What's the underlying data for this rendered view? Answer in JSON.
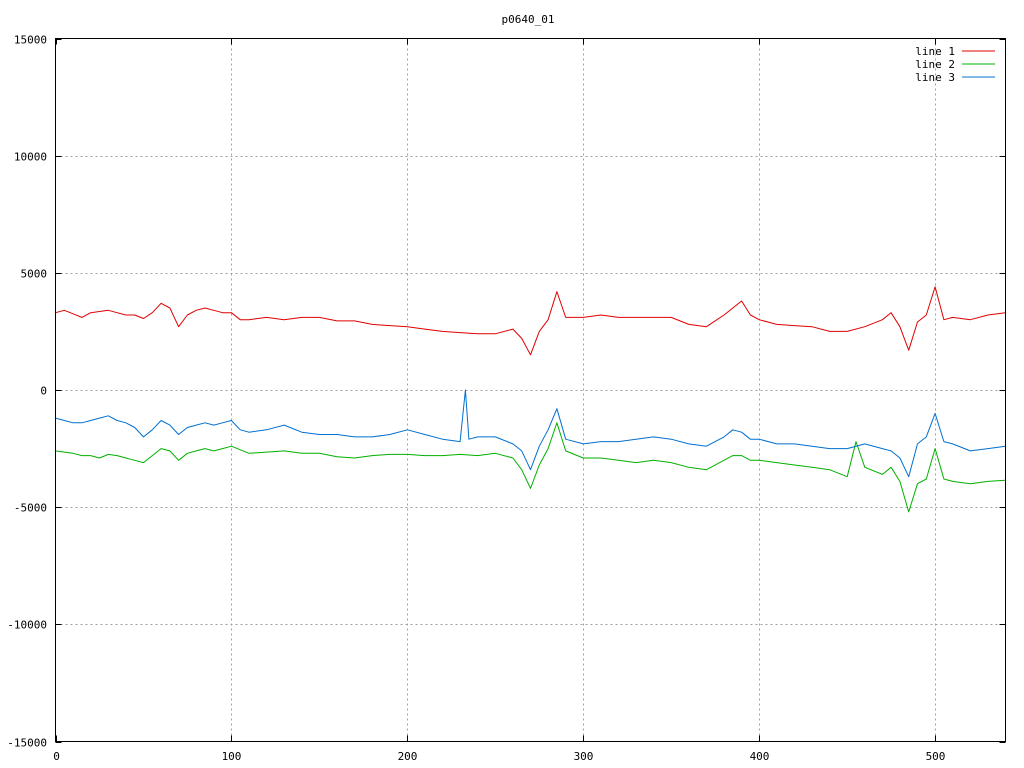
{
  "chart_data": {
    "type": "line",
    "title": "p0640_01",
    "xlabel": "",
    "ylabel": "",
    "xlim": [
      0,
      540
    ],
    "ylim": [
      -15000,
      15000
    ],
    "x_ticks": [
      0,
      100,
      200,
      300,
      400,
      500
    ],
    "y_ticks": [
      -15000,
      -10000,
      -5000,
      0,
      5000,
      10000,
      15000
    ],
    "grid": true,
    "legend_position": "top-right",
    "series": [
      {
        "name": "line 1",
        "color": "#e00000",
        "points": [
          [
            0,
            3300
          ],
          [
            5,
            3400
          ],
          [
            10,
            3250
          ],
          [
            15,
            3100
          ],
          [
            20,
            3300
          ],
          [
            25,
            3350
          ],
          [
            30,
            3400
          ],
          [
            35,
            3300
          ],
          [
            40,
            3200
          ],
          [
            45,
            3200
          ],
          [
            50,
            3050
          ],
          [
            55,
            3300
          ],
          [
            60,
            3700
          ],
          [
            65,
            3500
          ],
          [
            70,
            2700
          ],
          [
            75,
            3200
          ],
          [
            80,
            3400
          ],
          [
            85,
            3500
          ],
          [
            90,
            3400
          ],
          [
            95,
            3300
          ],
          [
            100,
            3300
          ],
          [
            105,
            3000
          ],
          [
            110,
            3000
          ],
          [
            120,
            3100
          ],
          [
            130,
            3000
          ],
          [
            140,
            3100
          ],
          [
            150,
            3100
          ],
          [
            160,
            2950
          ],
          [
            170,
            2950
          ],
          [
            180,
            2800
          ],
          [
            190,
            2750
          ],
          [
            200,
            2700
          ],
          [
            210,
            2600
          ],
          [
            220,
            2500
          ],
          [
            230,
            2450
          ],
          [
            240,
            2400
          ],
          [
            250,
            2400
          ],
          [
            260,
            2600
          ],
          [
            265,
            2200
          ],
          [
            270,
            1500
          ],
          [
            275,
            2500
          ],
          [
            280,
            3000
          ],
          [
            285,
            4200
          ],
          [
            290,
            3100
          ],
          [
            300,
            3100
          ],
          [
            310,
            3200
          ],
          [
            320,
            3100
          ],
          [
            330,
            3100
          ],
          [
            340,
            3100
          ],
          [
            350,
            3100
          ],
          [
            360,
            2800
          ],
          [
            370,
            2700
          ],
          [
            380,
            3200
          ],
          [
            385,
            3500
          ],
          [
            390,
            3800
          ],
          [
            395,
            3200
          ],
          [
            400,
            3000
          ],
          [
            410,
            2800
          ],
          [
            420,
            2750
          ],
          [
            430,
            2700
          ],
          [
            440,
            2500
          ],
          [
            450,
            2500
          ],
          [
            460,
            2700
          ],
          [
            470,
            3000
          ],
          [
            475,
            3300
          ],
          [
            480,
            2700
          ],
          [
            485,
            1700
          ],
          [
            490,
            2900
          ],
          [
            495,
            3200
          ],
          [
            500,
            4400
          ],
          [
            505,
            3000
          ],
          [
            510,
            3100
          ],
          [
            520,
            3000
          ],
          [
            530,
            3200
          ],
          [
            540,
            3300
          ]
        ]
      },
      {
        "name": "line 2",
        "color": "#00b000",
        "points": [
          [
            0,
            -2600
          ],
          [
            5,
            -2650
          ],
          [
            10,
            -2700
          ],
          [
            15,
            -2800
          ],
          [
            20,
            -2800
          ],
          [
            25,
            -2900
          ],
          [
            30,
            -2750
          ],
          [
            35,
            -2800
          ],
          [
            40,
            -2900
          ],
          [
            45,
            -3000
          ],
          [
            50,
            -3100
          ],
          [
            55,
            -2800
          ],
          [
            60,
            -2500
          ],
          [
            65,
            -2600
          ],
          [
            70,
            -3000
          ],
          [
            75,
            -2700
          ],
          [
            80,
            -2600
          ],
          [
            85,
            -2500
          ],
          [
            90,
            -2600
          ],
          [
            95,
            -2500
          ],
          [
            100,
            -2400
          ],
          [
            110,
            -2700
          ],
          [
            120,
            -2650
          ],
          [
            130,
            -2600
          ],
          [
            140,
            -2700
          ],
          [
            150,
            -2700
          ],
          [
            160,
            -2850
          ],
          [
            170,
            -2900
          ],
          [
            180,
            -2800
          ],
          [
            190,
            -2750
          ],
          [
            200,
            -2750
          ],
          [
            210,
            -2800
          ],
          [
            220,
            -2800
          ],
          [
            230,
            -2750
          ],
          [
            240,
            -2800
          ],
          [
            250,
            -2700
          ],
          [
            260,
            -2900
          ],
          [
            265,
            -3400
          ],
          [
            270,
            -4200
          ],
          [
            275,
            -3200
          ],
          [
            280,
            -2500
          ],
          [
            285,
            -1400
          ],
          [
            290,
            -2600
          ],
          [
            300,
            -2900
          ],
          [
            310,
            -2900
          ],
          [
            320,
            -3000
          ],
          [
            330,
            -3100
          ],
          [
            340,
            -3000
          ],
          [
            350,
            -3100
          ],
          [
            360,
            -3300
          ],
          [
            370,
            -3400
          ],
          [
            380,
            -3000
          ],
          [
            385,
            -2800
          ],
          [
            390,
            -2800
          ],
          [
            395,
            -3000
          ],
          [
            400,
            -3000
          ],
          [
            410,
            -3100
          ],
          [
            420,
            -3200
          ],
          [
            430,
            -3300
          ],
          [
            440,
            -3400
          ],
          [
            450,
            -3700
          ],
          [
            455,
            -2200
          ],
          [
            460,
            -3300
          ],
          [
            470,
            -3600
          ],
          [
            475,
            -3300
          ],
          [
            480,
            -3900
          ],
          [
            485,
            -5200
          ],
          [
            490,
            -4000
          ],
          [
            495,
            -3800
          ],
          [
            500,
            -2500
          ],
          [
            505,
            -3800
          ],
          [
            510,
            -3900
          ],
          [
            520,
            -4000
          ],
          [
            530,
            -3900
          ],
          [
            540,
            -3850
          ]
        ]
      },
      {
        "name": "line 3",
        "color": "#0070d0",
        "points": [
          [
            0,
            -1200
          ],
          [
            5,
            -1300
          ],
          [
            10,
            -1400
          ],
          [
            15,
            -1400
          ],
          [
            20,
            -1300
          ],
          [
            25,
            -1200
          ],
          [
            30,
            -1100
          ],
          [
            35,
            -1300
          ],
          [
            40,
            -1400
          ],
          [
            45,
            -1600
          ],
          [
            50,
            -2000
          ],
          [
            55,
            -1700
          ],
          [
            60,
            -1300
          ],
          [
            65,
            -1500
          ],
          [
            70,
            -1900
          ],
          [
            75,
            -1600
          ],
          [
            80,
            -1500
          ],
          [
            85,
            -1400
          ],
          [
            90,
            -1500
          ],
          [
            95,
            -1400
          ],
          [
            100,
            -1300
          ],
          [
            105,
            -1700
          ],
          [
            110,
            -1800
          ],
          [
            120,
            -1700
          ],
          [
            130,
            -1500
          ],
          [
            140,
            -1800
          ],
          [
            150,
            -1900
          ],
          [
            160,
            -1900
          ],
          [
            170,
            -2000
          ],
          [
            180,
            -2000
          ],
          [
            190,
            -1900
          ],
          [
            200,
            -1700
          ],
          [
            210,
            -1900
          ],
          [
            220,
            -2100
          ],
          [
            230,
            -2200
          ],
          [
            233,
            0
          ],
          [
            235,
            -2100
          ],
          [
            240,
            -2000
          ],
          [
            250,
            -2000
          ],
          [
            260,
            -2300
          ],
          [
            265,
            -2600
          ],
          [
            270,
            -3400
          ],
          [
            275,
            -2400
          ],
          [
            280,
            -1700
          ],
          [
            285,
            -800
          ],
          [
            290,
            -2100
          ],
          [
            300,
            -2300
          ],
          [
            310,
            -2200
          ],
          [
            320,
            -2200
          ],
          [
            330,
            -2100
          ],
          [
            340,
            -2000
          ],
          [
            350,
            -2100
          ],
          [
            360,
            -2300
          ],
          [
            370,
            -2400
          ],
          [
            380,
            -2000
          ],
          [
            385,
            -1700
          ],
          [
            390,
            -1800
          ],
          [
            395,
            -2100
          ],
          [
            400,
            -2100
          ],
          [
            410,
            -2300
          ],
          [
            420,
            -2300
          ],
          [
            430,
            -2400
          ],
          [
            440,
            -2500
          ],
          [
            450,
            -2500
          ],
          [
            460,
            -2300
          ],
          [
            470,
            -2500
          ],
          [
            475,
            -2600
          ],
          [
            480,
            -2900
          ],
          [
            485,
            -3700
          ],
          [
            490,
            -2300
          ],
          [
            495,
            -2000
          ],
          [
            500,
            -1000
          ],
          [
            505,
            -2200
          ],
          [
            510,
            -2300
          ],
          [
            520,
            -2600
          ],
          [
            530,
            -2500
          ],
          [
            540,
            -2400
          ]
        ]
      }
    ]
  }
}
